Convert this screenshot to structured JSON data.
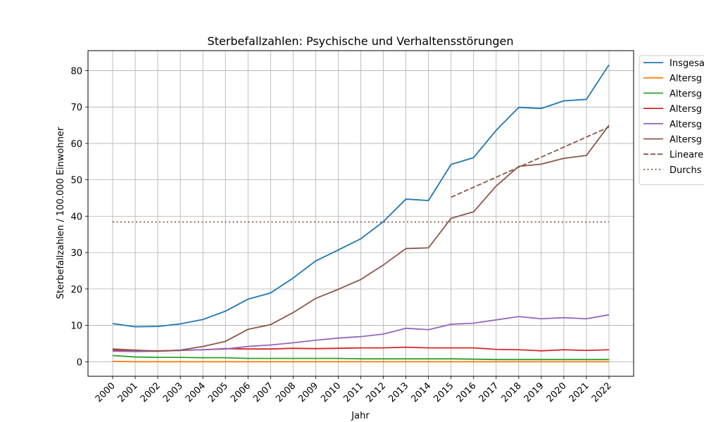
{
  "chart_data": {
    "type": "line",
    "title": "Sterbefallzahlen: Psychische und Verhaltensstörungen",
    "xlabel": "Jahr",
    "ylabel": "Sterbefallzahlen / 100.000 Einwohner",
    "x": [
      "2000",
      "2001",
      "2002",
      "2003",
      "2004",
      "2005",
      "2006",
      "2007",
      "2008",
      "2009",
      "2010",
      "2011",
      "2012",
      "2013",
      "2014",
      "2015",
      "2016",
      "2017",
      "2018",
      "2019",
      "2020",
      "2021",
      "2022"
    ],
    "ylim": [
      -4,
      85.5
    ],
    "yticks": [
      0,
      10,
      20,
      30,
      40,
      50,
      60,
      70,
      80
    ],
    "grid": true,
    "legend_position": "right",
    "series": [
      {
        "name": "Insgesa",
        "color": "#1f77b4",
        "style": "solid",
        "values": [
          10.5,
          9.6,
          9.7,
          10.4,
          11.6,
          13.9,
          17.2,
          18.9,
          23.0,
          27.7,
          30.7,
          33.8,
          38.5,
          44.7,
          44.3,
          54.2,
          56.1,
          63.6,
          69.9,
          69.6,
          71.7,
          72.1,
          81.6
        ]
      },
      {
        "name": "Altersg",
        "color": "#ff7f0e",
        "style": "solid",
        "values": [
          0.1,
          0.0,
          0.0,
          0.0,
          0.0,
          0.0,
          0.0,
          0.0,
          0.0,
          0.0,
          0.0,
          0.0,
          0.0,
          0.0,
          0.0,
          0.0,
          0.0,
          0.0,
          0.0,
          0.0,
          0.0,
          0.0,
          0.0
        ]
      },
      {
        "name": "Altersg",
        "color": "#2ca02c",
        "style": "solid",
        "values": [
          1.7,
          1.3,
          1.2,
          1.2,
          1.1,
          1.1,
          0.9,
          0.9,
          0.9,
          0.9,
          0.9,
          0.8,
          0.8,
          0.8,
          0.8,
          0.8,
          0.7,
          0.6,
          0.6,
          0.6,
          0.6,
          0.6,
          0.6
        ]
      },
      {
        "name": "Altersg",
        "color": "#d62728",
        "style": "solid",
        "values": [
          3.2,
          3.0,
          3.0,
          3.1,
          3.3,
          3.6,
          3.5,
          3.5,
          3.7,
          3.6,
          3.7,
          3.8,
          3.8,
          4.0,
          3.8,
          3.8,
          3.8,
          3.4,
          3.3,
          3.0,
          3.3,
          3.1,
          3.3
        ]
      },
      {
        "name": "Altersg",
        "color": "#9467bd",
        "style": "solid",
        "values": [
          2.9,
          2.8,
          2.9,
          3.1,
          3.3,
          3.5,
          4.2,
          4.6,
          5.2,
          5.9,
          6.5,
          6.9,
          7.6,
          9.2,
          8.8,
          10.3,
          10.6,
          11.5,
          12.4,
          11.8,
          12.1,
          11.8,
          12.9
        ]
      },
      {
        "name": "Altersg",
        "color": "#8c564b",
        "style": "solid",
        "values": [
          3.5,
          3.2,
          2.9,
          3.2,
          4.2,
          5.6,
          8.9,
          10.2,
          13.5,
          17.4,
          19.9,
          22.6,
          26.6,
          31.1,
          31.3,
          39.4,
          41.2,
          48.3,
          53.7,
          54.3,
          55.9,
          56.7,
          65.0
        ]
      },
      {
        "name": "Lineare",
        "color": "#8c564b",
        "style": "dashed",
        "x": [
          "2015",
          "2022"
        ],
        "values": [
          45.2,
          64.5
        ]
      },
      {
        "name": "Durchs",
        "color": "#8c564b",
        "style": "dotted",
        "x": [
          "2000",
          "2022"
        ],
        "values": [
          38.4,
          38.4
        ]
      }
    ]
  }
}
